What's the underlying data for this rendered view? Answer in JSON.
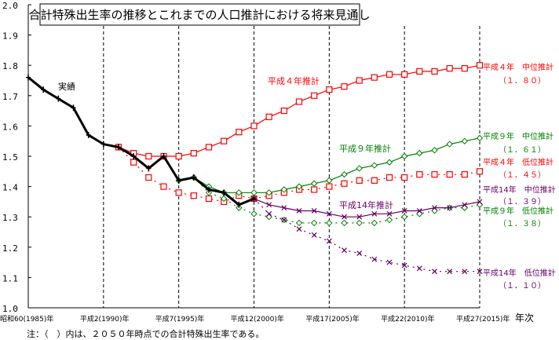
{
  "chart_data": {
    "type": "line",
    "title": "合計特殊出生率の推移とこれまでの人口推計における将来見通し",
    "xlabel": "年次",
    "ylabel": "",
    "ylim": [
      1.0,
      2.0
    ],
    "xlim": [
      1985,
      2015
    ],
    "grid": "vertical-dashed",
    "y_ticks": [
      "1.0",
      "1.1",
      "1.2",
      "1.3",
      "1.4",
      "1.5",
      "1.6",
      "1.7",
      "1.8",
      "1.9",
      "2.0"
    ],
    "x_ticks": [
      {
        "year": 1985,
        "label": "昭和60(1985)年"
      },
      {
        "year": 1990,
        "label": "平成2(1990)年"
      },
      {
        "year": 1995,
        "label": "平成7(1995)年"
      },
      {
        "year": 2000,
        "label": "平成12(2000)年"
      },
      {
        "year": 2005,
        "label": "平成17(2005)年"
      },
      {
        "year": 2010,
        "label": "平成22(2010)年"
      },
      {
        "year": 2015,
        "label": "平成27(2015)年"
      }
    ],
    "series": [
      {
        "name": "実績",
        "color": "#000000",
        "style": "solid",
        "marker": "plus",
        "x": [
          1985,
          1986,
          1987,
          1988,
          1989,
          1990,
          1991,
          1992,
          1993,
          1994,
          1995,
          1996,
          1997,
          1998,
          1999,
          2000
        ],
        "values": [
          1.76,
          1.72,
          1.69,
          1.66,
          1.57,
          1.54,
          1.53,
          1.5,
          1.46,
          1.5,
          1.42,
          1.43,
          1.39,
          1.38,
          1.34,
          1.36
        ]
      },
      {
        "name": "平成4年 中位推計",
        "color": "#ff0000",
        "style": "solid",
        "marker": "square",
        "x": [
          1991,
          1992,
          1993,
          1994,
          1995,
          1996,
          1997,
          1998,
          1999,
          2000,
          2001,
          2002,
          2003,
          2004,
          2005,
          2006,
          2007,
          2008,
          2009,
          2010,
          2011,
          2012,
          2013,
          2014,
          2015
        ],
        "values": [
          1.53,
          1.51,
          1.5,
          1.5,
          1.5,
          1.51,
          1.53,
          1.55,
          1.58,
          1.6,
          1.63,
          1.65,
          1.68,
          1.7,
          1.72,
          1.73,
          1.75,
          1.76,
          1.77,
          1.77,
          1.78,
          1.78,
          1.79,
          1.79,
          1.8
        ]
      },
      {
        "name": "平成4年 低位推計",
        "color": "#ff0000",
        "style": "dotted",
        "marker": "square",
        "x": [
          1991,
          1992,
          1993,
          1994,
          1995,
          1996,
          1997,
          1998,
          1999,
          2000,
          2001,
          2002,
          2003,
          2004,
          2005,
          2006,
          2007,
          2008,
          2009,
          2010,
          2011,
          2012,
          2013,
          2014,
          2015
        ],
        "values": [
          1.53,
          1.48,
          1.43,
          1.4,
          1.38,
          1.37,
          1.36,
          1.35,
          1.37,
          1.36,
          1.37,
          1.38,
          1.39,
          1.39,
          1.4,
          1.41,
          1.42,
          1.42,
          1.43,
          1.43,
          1.44,
          1.44,
          1.44,
          1.44,
          1.45
        ]
      },
      {
        "name": "平成9年 中位推計",
        "color": "#008000",
        "style": "solid",
        "marker": "diamond",
        "x": [
          1995,
          1996,
          1997,
          1998,
          1999,
          2000,
          2001,
          2002,
          2003,
          2004,
          2005,
          2006,
          2007,
          2008,
          2009,
          2010,
          2011,
          2012,
          2013,
          2014,
          2015
        ],
        "values": [
          1.42,
          1.43,
          1.4,
          1.38,
          1.38,
          1.38,
          1.38,
          1.39,
          1.4,
          1.41,
          1.42,
          1.44,
          1.46,
          1.47,
          1.48,
          1.5,
          1.51,
          1.52,
          1.54,
          1.55,
          1.56
        ]
      },
      {
        "name": "平成9年 低位推計",
        "color": "#008000",
        "style": "dotted",
        "marker": "diamond",
        "x": [
          1996,
          1997,
          1998,
          1999,
          2000,
          2001,
          2002,
          2003,
          2004,
          2005,
          2006,
          2007,
          2008,
          2009,
          2010,
          2011,
          2012,
          2013,
          2014,
          2015
        ],
        "values": [
          1.43,
          1.38,
          1.36,
          1.33,
          1.31,
          1.3,
          1.29,
          1.28,
          1.28,
          1.28,
          1.28,
          1.28,
          1.28,
          1.29,
          1.3,
          1.31,
          1.32,
          1.33,
          1.33,
          1.34
        ]
      },
      {
        "name": "平成14年 中位推計",
        "color": "#660066",
        "style": "solid",
        "marker": "cross",
        "x": [
          2000,
          2001,
          2002,
          2003,
          2004,
          2005,
          2006,
          2007,
          2008,
          2009,
          2010,
          2011,
          2012,
          2013,
          2014,
          2015
        ],
        "values": [
          1.36,
          1.34,
          1.33,
          1.32,
          1.32,
          1.31,
          1.3,
          1.3,
          1.31,
          1.31,
          1.32,
          1.32,
          1.33,
          1.33,
          1.34,
          1.35
        ]
      },
      {
        "name": "平成14年 低位推計",
        "color": "#660066",
        "style": "dotted",
        "marker": "cross",
        "x": [
          2000,
          2001,
          2002,
          2003,
          2004,
          2005,
          2006,
          2007,
          2008,
          2009,
          2010,
          2011,
          2012,
          2013,
          2014,
          2015
        ],
        "values": [
          1.36,
          1.31,
          1.29,
          1.26,
          1.24,
          1.22,
          1.19,
          1.18,
          1.16,
          1.15,
          1.14,
          1.13,
          1.12,
          1.12,
          1.12,
          1.12
        ]
      }
    ],
    "annotations": [
      {
        "text": "実績",
        "color": "#000000"
      },
      {
        "text": "平成４年推計",
        "color": "#ff0000"
      },
      {
        "text": "平成９年推計",
        "color": "#008000"
      },
      {
        "text": "平成14年推計",
        "color": "#660066"
      }
    ],
    "end_labels": [
      {
        "line1": "平成４年　中位推計",
        "line2": "（１．８０）",
        "color": "#ff0000"
      },
      {
        "line1": "平成９年　中位推計",
        "line2": "（１．６１）",
        "color": "#008000"
      },
      {
        "line1": "平成４年　低位推計",
        "line2": "（１．４５）",
        "color": "#ff0000"
      },
      {
        "line1": "平成14年　中位推計",
        "line2": "（１．３９）",
        "color": "#660066"
      },
      {
        "line1": "平成９年　低位推計",
        "line2": "（１．３８）",
        "color": "#008000"
      },
      {
        "line1": "平成14年　低位推計",
        "line2": "（１．１０）",
        "color": "#660066"
      }
    ],
    "note": "注：（　）内は、２０５０年時点での合計特殊出生率である。"
  }
}
